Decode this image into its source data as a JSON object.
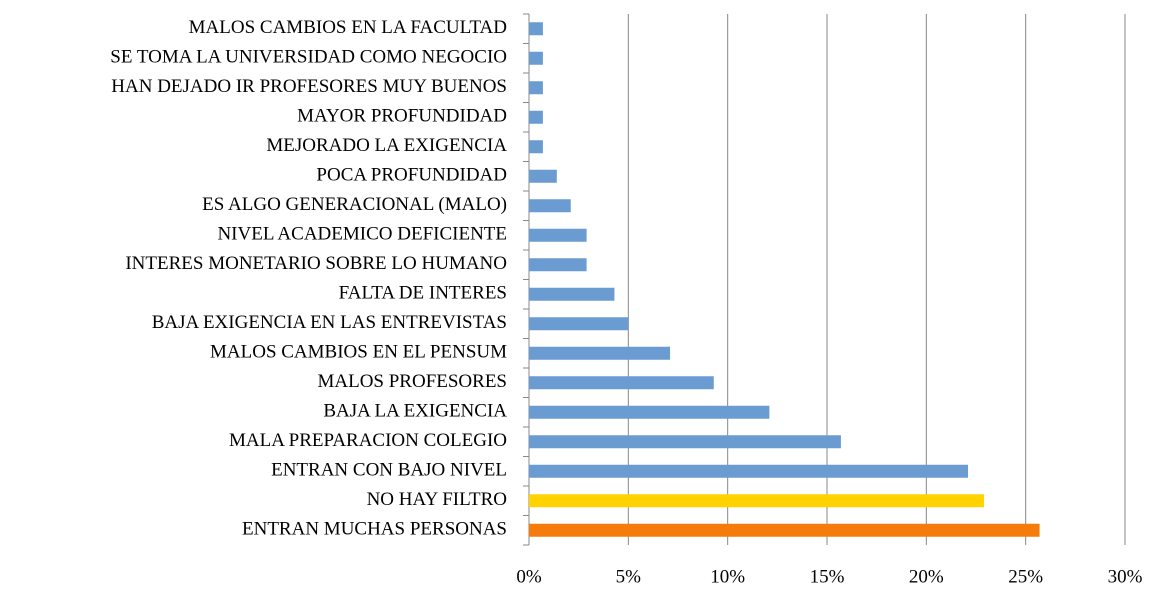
{
  "chart_data": {
    "type": "barh",
    "categories": [
      "ENTRAN MUCHAS PERSONAS",
      "NO HAY FILTRO",
      "ENTRAN CON BAJO NIVEL",
      "MALA PREPARACION COLEGIO",
      "BAJA LA EXIGENCIA",
      "MALOS PROFESORES",
      "MALOS CAMBIOS EN EL PENSUM",
      "BAJA EXIGENCIA EN LAS ENTREVISTAS",
      "FALTA DE INTERES",
      "INTERES MONETARIO SOBRE LO HUMANO",
      "NIVEL ACADEMICO DEFICIENTE",
      "ES ALGO GENERACIONAL (MALO)",
      "POCA PROFUNDIDAD",
      "MEJORADO LA EXIGENCIA",
      "MAYOR PROFUNDIDAD",
      "HAN DEJADO IR PROFESORES MUY BUENOS",
      "SE TOMA LA UNIVERSIDAD COMO NEGOCIO",
      "MALOS CAMBIOS EN LA FACULTAD"
    ],
    "values": [
      25.7,
      22.9,
      22.1,
      15.7,
      12.1,
      9.3,
      7.1,
      5.0,
      4.3,
      2.9,
      2.9,
      2.1,
      1.4,
      0.7,
      0.7,
      0.7,
      0.7,
      0.7
    ],
    "colors": [
      "#f57c0a",
      "#ffd200",
      "#6a9bd1",
      "#6a9bd1",
      "#6a9bd1",
      "#6a9bd1",
      "#6a9bd1",
      "#6a9bd1",
      "#6a9bd1",
      "#6a9bd1",
      "#6a9bd1",
      "#6a9bd1",
      "#6a9bd1",
      "#6a9bd1",
      "#6a9bd1",
      "#6a9bd1",
      "#6a9bd1",
      "#6a9bd1"
    ],
    "xlim": [
      0,
      30
    ],
    "xticks": [
      {
        "value": 0,
        "label": "0%"
      },
      {
        "value": 5,
        "label": "5%"
      },
      {
        "value": 10,
        "label": "10%"
      },
      {
        "value": 15,
        "label": "15%"
      },
      {
        "value": 20,
        "label": "20%"
      },
      {
        "value": 25,
        "label": "25%"
      },
      {
        "value": 30,
        "label": "30%"
      }
    ],
    "grid": true
  }
}
